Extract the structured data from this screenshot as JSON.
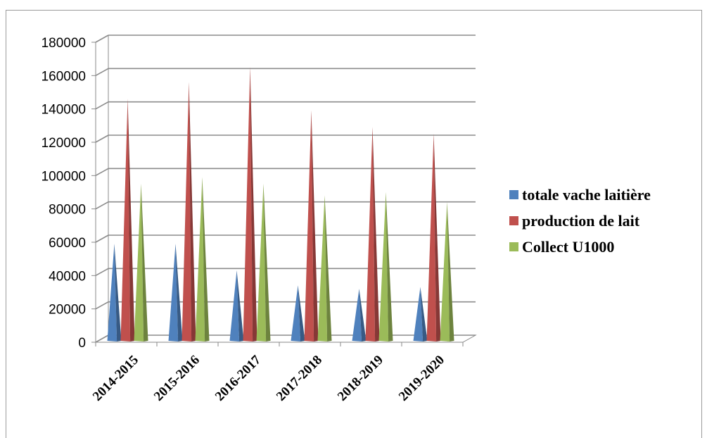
{
  "chart_data": {
    "type": "bar",
    "bar_shape": "cone-3d",
    "categories": [
      "2014-2015",
      "2015-2016",
      "2016-2017",
      "2017-2018",
      "2018-2019",
      "2019-2020"
    ],
    "series": [
      {
        "name": "totale vache laitière",
        "color": "#4f81bd",
        "values": [
          57000,
          57000,
          41000,
          32000,
          30000,
          31000
        ]
      },
      {
        "name": "production de lait",
        "color": "#c0504d",
        "values": [
          144000,
          154000,
          163000,
          137000,
          127000,
          123000
        ]
      },
      {
        "name": "Collect U1000",
        "color": "#9bbb59",
        "values": [
          93000,
          97000,
          93000,
          86000,
          88000,
          82000
        ]
      }
    ],
    "y_ticks": [
      "0",
      "20000",
      "40000",
      "60000",
      "80000",
      "100000",
      "120000",
      "140000",
      "160000",
      "180000"
    ],
    "ylim": [
      0,
      180000
    ],
    "grid": true,
    "legend_position": "right"
  }
}
